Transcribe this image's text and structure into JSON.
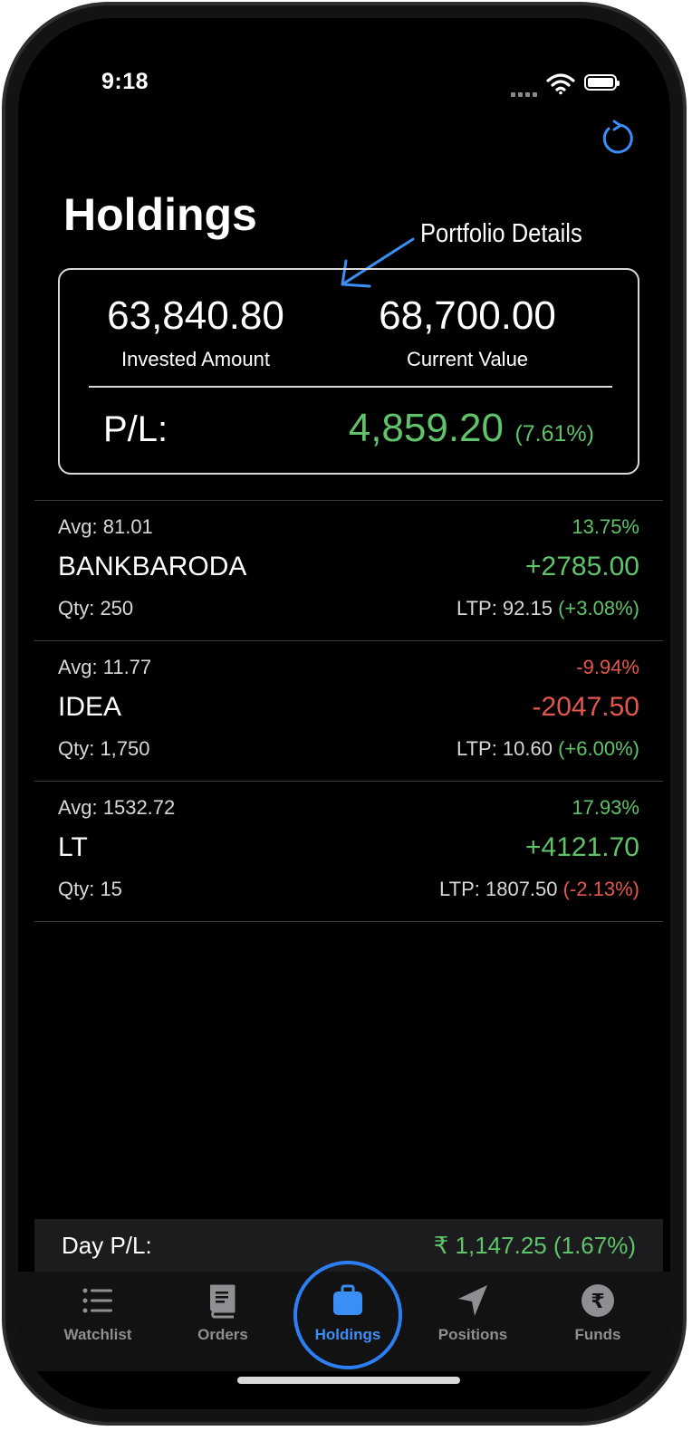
{
  "status_bar": {
    "time": "9:18"
  },
  "header": {
    "title": "Holdings"
  },
  "annotation": {
    "label": "Portfolio Details"
  },
  "portfolio": {
    "invested_amount": "63,840.80",
    "invested_label": "Invested Amount",
    "current_value": "68,700.00",
    "current_label": "Current Value",
    "pl_label": "P/L:",
    "pl_value": "4,859.20",
    "pl_percent": "(7.61%)"
  },
  "holdings": [
    {
      "avg": "Avg: 81.01",
      "pct": "13.75%",
      "symbol": "BANKBARODA",
      "pnl": "+2785.00",
      "qty": "Qty: 250",
      "ltp": "LTP: 92.15",
      "ltp_change": "(+3.08%)",
      "pnl_color": "#5fc36a",
      "ltp_change_color": "#5fc36a"
    },
    {
      "avg": "Avg: 11.77",
      "pct": "-9.94%",
      "symbol": "IDEA",
      "pnl": "-2047.50",
      "qty": "Qty: 1,750",
      "ltp": "LTP: 10.60",
      "ltp_change": "(+6.00%)",
      "pnl_color": "#e5564d",
      "ltp_change_color": "#5fc36a"
    },
    {
      "avg": "Avg: 1532.72",
      "pct": "17.93%",
      "symbol": "LT",
      "pnl": "+4121.70",
      "qty": "Qty: 15",
      "ltp": "LTP: 1807.50",
      "ltp_change": "(-2.13%)",
      "pnl_color": "#5fc36a",
      "ltp_change_color": "#e5564d"
    }
  ],
  "day_pl": {
    "label": "Day P/L:",
    "value": "₹ 1,147.25 (1.67%)"
  },
  "tabs": [
    {
      "label": "Watchlist",
      "icon": "list-icon"
    },
    {
      "label": "Orders",
      "icon": "book-icon"
    },
    {
      "label": "Holdings",
      "icon": "briefcase-icon",
      "active": true
    },
    {
      "label": "Positions",
      "icon": "location-arrow-icon"
    },
    {
      "label": "Funds",
      "icon": "rupee-icon"
    }
  ],
  "colors": {
    "accent": "#3a8ef6",
    "gain": "#5fc36a",
    "loss": "#e5564d"
  }
}
